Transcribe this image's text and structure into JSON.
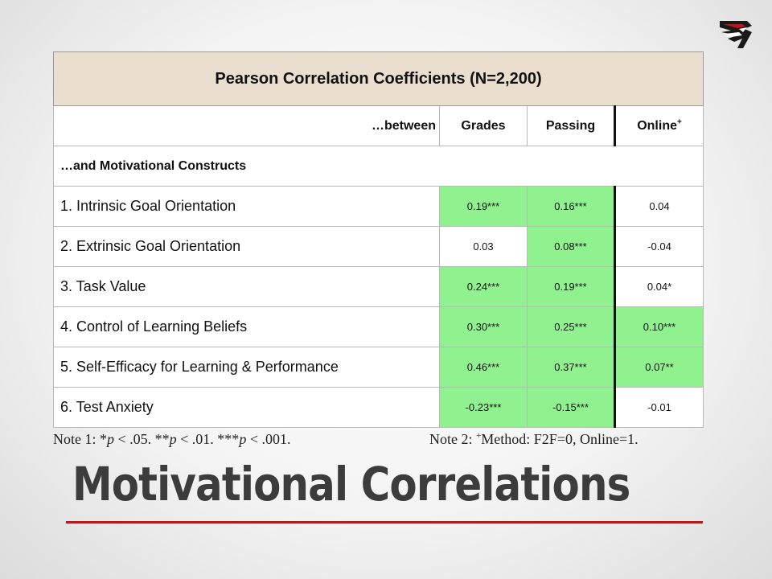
{
  "table": {
    "title": "Pearson Correlation Coefficients (N=2,200)",
    "between_label": "…between",
    "columns": [
      "Grades",
      "Passing",
      "Online"
    ],
    "online_marker": "+",
    "section_label": "…and Motivational Constructs",
    "rows": [
      {
        "label": "1. Intrinsic Goal Orientation",
        "values": [
          "0.19***",
          "0.16***",
          "0.04"
        ],
        "significant": [
          true,
          true,
          false
        ]
      },
      {
        "label": "2. Extrinsic Goal Orientation",
        "values": [
          "0.03",
          "0.08***",
          "-0.04"
        ],
        "significant": [
          false,
          true,
          false
        ]
      },
      {
        "label": "3. Task Value",
        "values": [
          "0.24***",
          "0.19***",
          "0.04*"
        ],
        "significant": [
          true,
          true,
          false
        ]
      },
      {
        "label": "4. Control of Learning Beliefs",
        "values": [
          "0.30***",
          "0.25***",
          "0.10***"
        ],
        "significant": [
          true,
          true,
          true
        ]
      },
      {
        "label": "5. Self-Efficacy for Learning & Performance",
        "values": [
          "0.46***",
          "0.37***",
          "0.07**"
        ],
        "significant": [
          true,
          true,
          true
        ]
      },
      {
        "label": "6. Test Anxiety",
        "values": [
          "-0.23***",
          "-0.15***",
          "-0.01"
        ],
        "significant": [
          true,
          true,
          false
        ]
      }
    ]
  },
  "notes": {
    "note1_prefix": "Note 1: *",
    "note1_p1": "p",
    "note1_mid1": " < .05. **",
    "note1_p2": "p",
    "note1_mid2": " < .01. ***",
    "note1_p3": "p",
    "note1_end": " < .001.",
    "note2_prefix": "Note 2: ",
    "note2_marker": "+",
    "note2_text": "Method: F2F=0, Online=1."
  },
  "slide_title": "Motivational Correlations",
  "colors": {
    "significant_fill": "#8ff28f",
    "title_row_fill": "#eadfcf",
    "rule": "#c0151b"
  },
  "icons": {
    "logo": "eagle-logo-icon"
  }
}
